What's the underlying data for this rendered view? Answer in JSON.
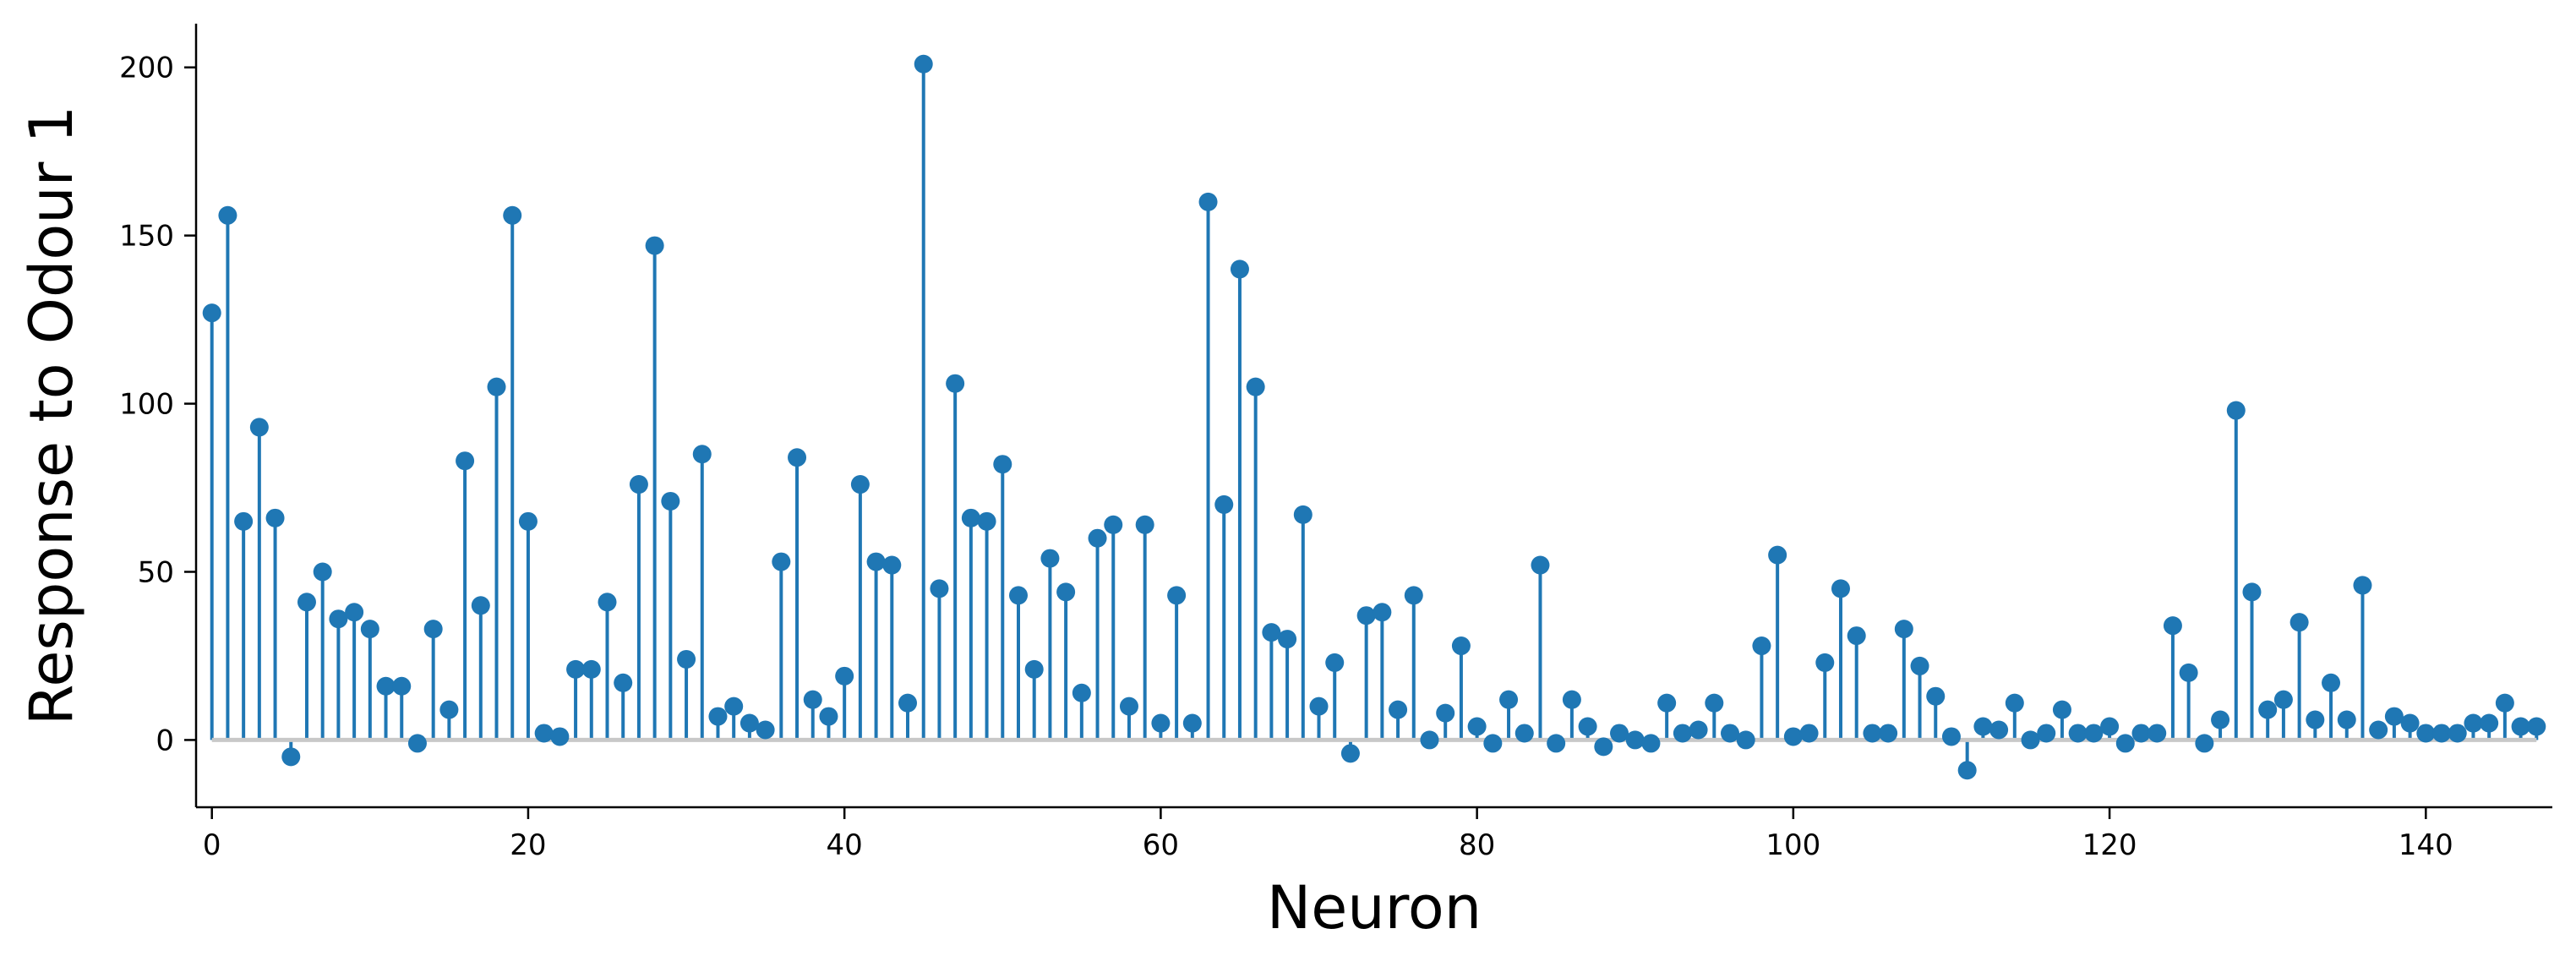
{
  "chart_data": {
    "type": "stem",
    "xlabel": "Neuron",
    "ylabel": "Response to Odour 1",
    "xlim": [
      -1,
      148
    ],
    "ylim": [
      -20,
      213
    ],
    "xticks": [
      0,
      20,
      40,
      60,
      80,
      100,
      120,
      140
    ],
    "yticks": [
      0,
      50,
      100,
      150,
      200
    ],
    "baseline": 0,
    "grid": false,
    "colors": {
      "stem": "#1f77b4",
      "marker": "#1f77b4",
      "baseline": "#c8c8c8",
      "axis": "#000000"
    },
    "x": [
      0,
      1,
      2,
      3,
      4,
      5,
      6,
      7,
      8,
      9,
      10,
      11,
      12,
      13,
      14,
      15,
      16,
      17,
      18,
      19,
      20,
      21,
      22,
      23,
      24,
      25,
      26,
      27,
      28,
      29,
      30,
      31,
      32,
      33,
      34,
      35,
      36,
      37,
      38,
      39,
      40,
      41,
      42,
      43,
      44,
      45,
      46,
      47,
      48,
      49,
      50,
      51,
      52,
      53,
      54,
      55,
      56,
      57,
      58,
      59,
      60,
      61,
      62,
      63,
      64,
      65,
      66,
      67,
      68,
      69,
      70,
      71,
      72,
      73,
      74,
      75,
      76,
      77,
      78,
      79,
      80,
      81,
      82,
      83,
      84,
      85,
      86,
      87,
      88,
      89,
      90,
      91,
      92,
      93,
      94,
      95,
      96,
      97,
      98,
      99,
      100,
      101,
      102,
      103,
      104,
      105,
      106,
      107,
      108,
      109,
      110,
      111,
      112,
      113,
      114,
      115,
      116,
      117,
      118,
      119,
      120,
      121,
      122,
      123,
      124,
      125,
      126,
      127,
      128,
      129,
      130,
      131,
      132,
      133,
      134,
      135,
      136,
      137,
      138,
      139,
      140,
      141,
      142,
      143,
      144,
      145,
      146,
      147
    ],
    "values": [
      127,
      156,
      65,
      93,
      66,
      -5,
      41,
      50,
      36,
      38,
      33,
      16,
      16,
      -1,
      33,
      9,
      83,
      40,
      105,
      156,
      65,
      2,
      1,
      21,
      21,
      41,
      17,
      76,
      147,
      71,
      24,
      85,
      7,
      10,
      5,
      3,
      53,
      84,
      12,
      7,
      19,
      76,
      53,
      52,
      11,
      201,
      45,
      106,
      66,
      65,
      82,
      43,
      21,
      54,
      44,
      14,
      60,
      64,
      10,
      64,
      5,
      43,
      5,
      160,
      70,
      140,
      105,
      32,
      30,
      67,
      10,
      23,
      -4,
      37,
      38,
      9,
      43,
      0,
      8,
      28,
      4,
      -1,
      12,
      2,
      52,
      -1,
      12,
      4,
      -2,
      2,
      0,
      -1,
      11,
      2,
      3,
      11,
      2,
      0,
      28,
      55,
      1,
      2,
      23,
      45,
      31,
      2,
      2,
      33,
      22,
      13,
      1,
      -9,
      4,
      3,
      11,
      0,
      2,
      9,
      2,
      2,
      4,
      -1,
      2,
      2,
      34,
      20,
      -1,
      6,
      98,
      44,
      9,
      12,
      35,
      6,
      17,
      6,
      46,
      3,
      7,
      5,
      2,
      2,
      2,
      5,
      5,
      11,
      4,
      4
    ]
  }
}
